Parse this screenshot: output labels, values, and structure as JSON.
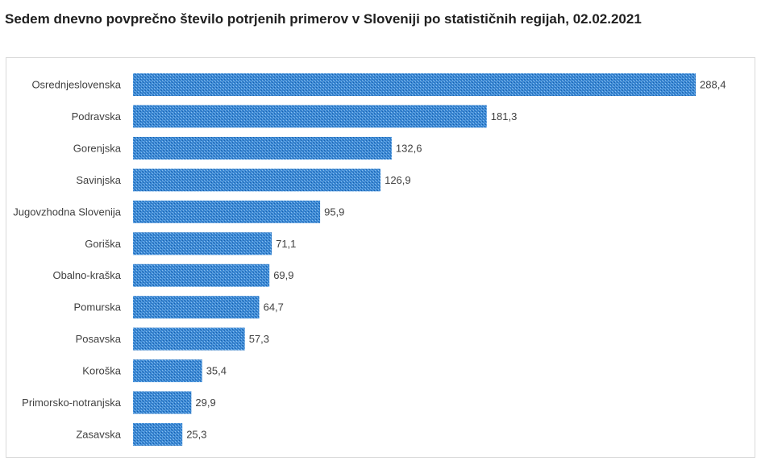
{
  "chart_data": {
    "type": "bar",
    "orientation": "horizontal",
    "title": "Sedem dnevno povprečno število potrjenih primerov v Sloveniji po statističnih regijah, 02.02.2021",
    "xlabel": "",
    "ylabel": "",
    "categories": [
      "Osrednjeslovenska",
      "Podravska",
      "Gorenjska",
      "Savinjska",
      "Jugovzhodna Slovenija",
      "Goriška",
      "Obalno-kraška",
      "Pomurska",
      "Posavska",
      "Koroška",
      "Primorsko-notranjska",
      "Zasavska"
    ],
    "values": [
      288.4,
      181.3,
      132.6,
      126.9,
      95.9,
      71.1,
      69.9,
      64.7,
      57.3,
      35.4,
      29.9,
      25.3
    ],
    "value_labels": [
      "288,4",
      "181,3",
      "132,6",
      "126,9",
      "95,9",
      "71,1",
      "69,9",
      "64,7",
      "57,3",
      "35,4",
      "29,9",
      "25,3"
    ],
    "xlim": [
      0,
      288.4
    ],
    "grid": false,
    "legend": "none",
    "colors": {
      "bar_fill": "#3d8ad6",
      "bar_dots": "#1a5fa8",
      "bar_highlight": "#8cc0ee",
      "text": "#404040",
      "frame": "#d9d9d9"
    }
  }
}
